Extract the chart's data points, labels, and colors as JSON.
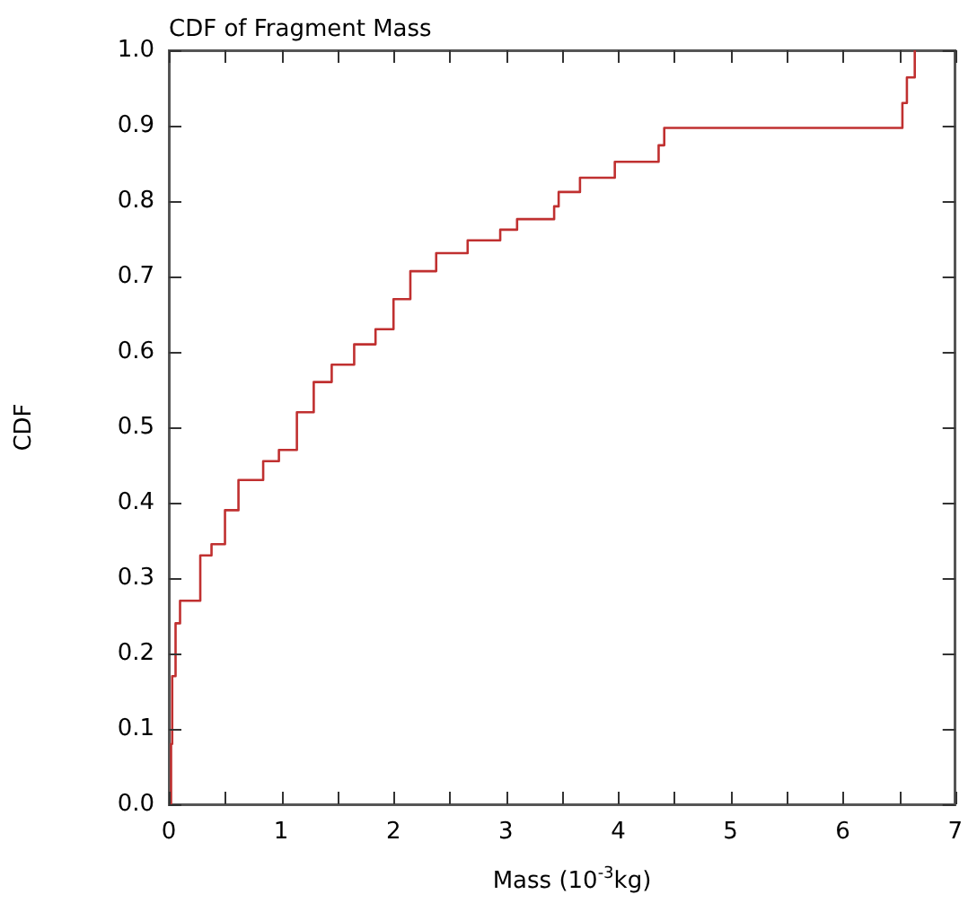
{
  "chart_data": {
    "type": "step",
    "title": "CDF of Fragment Mass",
    "xlabel": "Mass (10$^{-3}$kg)",
    "ylabel": "CDF",
    "x": [
      0,
      0.02,
      0.03,
      0.06,
      0.1,
      0.28,
      0.38,
      0.5,
      0.62,
      0.84,
      0.98,
      1.14,
      1.29,
      1.45,
      1.65,
      1.84,
      2.0,
      2.15,
      2.38,
      2.66,
      2.95,
      3.1,
      3.43,
      3.47,
      3.66,
      3.97,
      4.36,
      4.41,
      6.53,
      6.57,
      6.64
    ],
    "series": [
      {
        "color": "#c03030",
        "values": [
          0,
          0.08,
          0.17,
          0.24,
          0.27,
          0.33,
          0.345,
          0.39,
          0.43,
          0.455,
          0.47,
          0.52,
          0.56,
          0.583,
          0.61,
          0.63,
          0.67,
          0.707,
          0.731,
          0.748,
          0.762,
          0.776,
          0.793,
          0.812,
          0.831,
          0.852,
          0.874,
          0.897,
          0.93,
          0.964,
          1.0
        ]
      }
    ],
    "xlim": [
      0,
      7
    ],
    "xticks": [
      0,
      {
        "value": 0.5,
        "label": null
      },
      1,
      {
        "value": 1.5,
        "label": null
      },
      2,
      {
        "value": 2.5,
        "label": null
      },
      3,
      {
        "value": 3.5,
        "label": null
      },
      4,
      {
        "value": 4.5,
        "label": null
      },
      5,
      {
        "value": 5.5,
        "label": null
      },
      6,
      {
        "value": 6.5,
        "label": null
      },
      7
    ],
    "ylim": [
      0,
      1
    ],
    "yticks": [
      {
        "value": 0,
        "label": "0.0"
      },
      {
        "value": 0.1,
        "label": "0.1"
      },
      {
        "value": 0.2,
        "label": "0.2"
      },
      {
        "value": 0.3,
        "label": "0.3"
      },
      {
        "value": 0.4,
        "label": "0.4"
      },
      {
        "value": 0.5,
        "label": "0.5"
      },
      {
        "value": 0.6,
        "label": "0.6"
      },
      {
        "value": 0.7,
        "label": "0.7"
      },
      {
        "value": 0.8,
        "label": "0.8"
      },
      {
        "value": 0.9,
        "label": "0.9"
      },
      {
        "value": 1,
        "label": "1.0"
      }
    ],
    "grid": false,
    "legend": false,
    "marker": "none",
    "line_style": "solid"
  }
}
